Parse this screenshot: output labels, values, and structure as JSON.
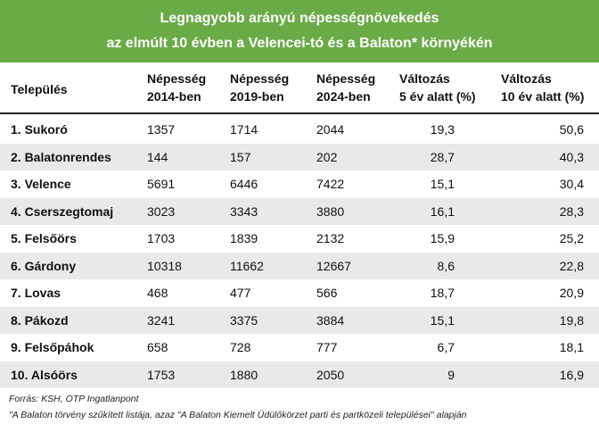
{
  "header": {
    "title": [
      "Legnagyobb arányú népességnövekedés",
      "az elmúlt 10 évben a Velencei-tó és a Balaton* környékén"
    ]
  },
  "table": {
    "columns": [
      [
        "Település"
      ],
      [
        "Népesség",
        "2014-ben"
      ],
      [
        "Népesség",
        "2019-ben"
      ],
      [
        "Népesség",
        "2024-ben"
      ],
      [
        "Változás",
        "5 év alatt (%)"
      ],
      [
        "Változás",
        "10 év alatt (%)"
      ]
    ],
    "rows": [
      [
        "1. Sukoró",
        "1357",
        "1714",
        "2044",
        "19,3",
        "50,6"
      ],
      [
        "2. Balatonrendes",
        "144",
        "157",
        "202",
        "28,7",
        "40,3"
      ],
      [
        "3. Velence",
        "5691",
        "6446",
        "7422",
        "15,1",
        "30,4"
      ],
      [
        "4. Cserszegtomaj",
        "3023",
        "3343",
        "3880",
        "16,1",
        "28,3"
      ],
      [
        "5. Felsőörs",
        "1703",
        "1839",
        "2132",
        "15,9",
        "25,2"
      ],
      [
        "6. Gárdony",
        "10318",
        "11662",
        "12667",
        "8,6",
        "22,8"
      ],
      [
        "7. Lovas",
        "468",
        "477",
        "566",
        "18,7",
        "20,9"
      ],
      [
        "8. Pákozd",
        "3241",
        "3375",
        "3884",
        "15,1",
        "19,8"
      ],
      [
        "9. Felsőpáhok",
        "658",
        "728",
        "777",
        "6,7",
        "18,1"
      ],
      [
        "10. Alsóörs",
        "1753",
        "1880",
        "2050",
        "9",
        "16,9"
      ]
    ]
  },
  "footer": {
    "notes": [
      "Forrás: KSH, OTP Ingatlanpont",
      "\"A Balaton törvény szűkített listája, azaz \"A Balaton Kiemelt Üdülőkörzet parti és partközeli települései\" alapján"
    ]
  }
}
